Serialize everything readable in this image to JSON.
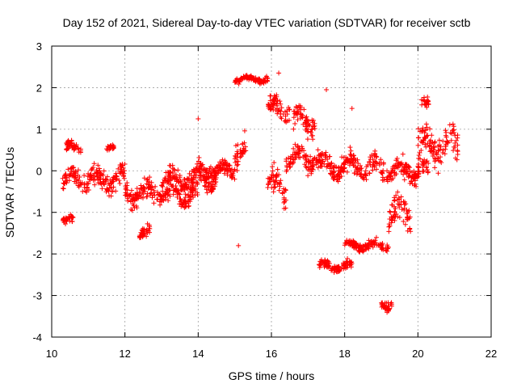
{
  "chart_data": {
    "type": "scatter",
    "title": "Day 152 of 2021, Sidereal Day-to-day VTEC variation (SDTVAR) for receiver sctb",
    "xlabel": "GPS time / hours",
    "ylabel": "SDTVAR / TECUs",
    "xlim": [
      10,
      22
    ],
    "ylim": [
      -4,
      3
    ],
    "x_ticks": [
      10,
      12,
      14,
      16,
      18,
      20,
      22
    ],
    "y_ticks": [
      -4,
      -3,
      -2,
      -1,
      0,
      1,
      2,
      3
    ],
    "grid": true,
    "marker": "plus",
    "color": "#ff0000",
    "approx_clusters": [
      {
        "x_range": [
          10.3,
          10.6
        ],
        "y_center": -1.2,
        "spread": 0.15
      },
      {
        "x_range": [
          10.3,
          12.0
        ],
        "y_center": -0.2,
        "spread": 0.35
      },
      {
        "x_range": [
          10.4,
          10.8
        ],
        "y_center": 0.55,
        "spread": 0.2
      },
      {
        "x_range": [
          11.5,
          11.7
        ],
        "y_center": 0.6,
        "spread": 0.1
      },
      {
        "x_range": [
          12.0,
          14.0
        ],
        "y_center": -0.55,
        "spread": 0.35
      },
      {
        "x_range": [
          12.4,
          12.7
        ],
        "y_center": -1.5,
        "spread": 0.2
      },
      {
        "x_range": [
          13.0,
          14.5
        ],
        "y_center": -0.2,
        "spread": 0.3
      },
      {
        "x_range": [
          14.0,
          15.0
        ],
        "y_center": 0.0,
        "spread": 0.25
      },
      {
        "x_range": [
          15.0,
          15.3
        ],
        "y_center": 0.5,
        "spread": 0.4
      },
      {
        "x_range": [
          15.0,
          15.9
        ],
        "y_center": 2.2,
        "spread": 0.1
      },
      {
        "x_range": [
          15.9,
          16.5
        ],
        "y_center": 1.5,
        "spread": 0.3
      },
      {
        "x_range": [
          15.9,
          16.4
        ],
        "y_center": -0.4,
        "spread": 0.5
      },
      {
        "x_range": [
          16.4,
          17.3
        ],
        "y_center": 0.3,
        "spread": 0.35
      },
      {
        "x_range": [
          16.6,
          17.2
        ],
        "y_center": 1.2,
        "spread": 0.4
      },
      {
        "x_range": [
          17.3,
          18.2
        ],
        "y_center": -2.3,
        "spread": 0.15
      },
      {
        "x_range": [
          17.3,
          19.0
        ],
        "y_center": 0.1,
        "spread": 0.35
      },
      {
        "x_range": [
          18.0,
          19.2
        ],
        "y_center": -1.8,
        "spread": 0.15
      },
      {
        "x_range": [
          19.0,
          19.3
        ],
        "y_center": -3.2,
        "spread": 0.15
      },
      {
        "x_range": [
          19.2,
          19.8
        ],
        "y_center": -1.0,
        "spread": 0.5
      },
      {
        "x_range": [
          19.0,
          20.3
        ],
        "y_center": 0.0,
        "spread": 0.35
      },
      {
        "x_range": [
          20.0,
          21.1
        ],
        "y_center": 0.6,
        "spread": 0.5
      },
      {
        "x_range": [
          20.1,
          20.3
        ],
        "y_center": 1.6,
        "spread": 0.15
      }
    ],
    "outliers": [
      {
        "x": 14.0,
        "y": 1.25
      },
      {
        "x": 15.1,
        "y": -1.8
      },
      {
        "x": 17.5,
        "y": 1.95
      },
      {
        "x": 18.2,
        "y": 1.5
      },
      {
        "x": 16.2,
        "y": 2.35
      },
      {
        "x": 19.2,
        "y": -3.35
      }
    ]
  }
}
